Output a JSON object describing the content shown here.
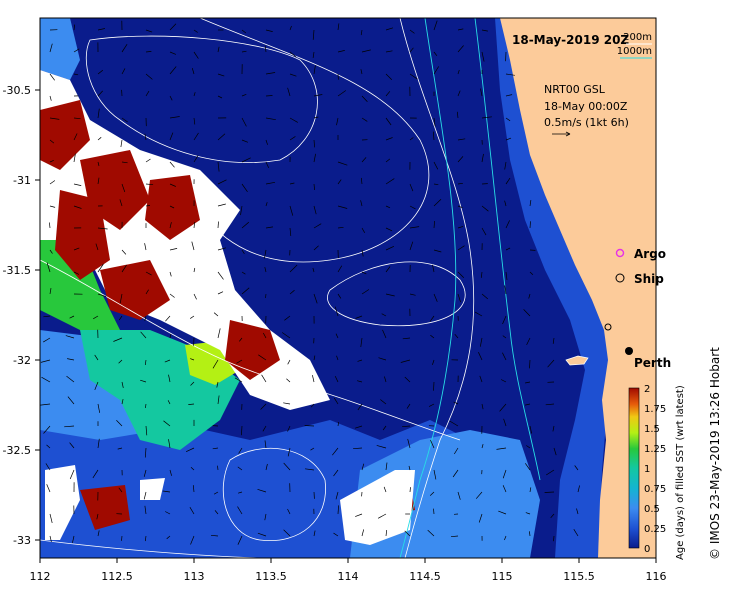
{
  "title": "18-May-2019 20Z",
  "depth_legend": {
    "a": "200m",
    "b": "1000m"
  },
  "current_info": {
    "line1": "NRT00 GSL",
    "line2": "18-May 00:00Z",
    "line3": "0.5m/s (1kt 6h)"
  },
  "markers": {
    "argo": "Argo",
    "ship": "Ship",
    "city": "Perth"
  },
  "colorbar": {
    "label": "Age (days) of filled SST (wrt latest)",
    "ticks": [
      "2",
      "1.75",
      "1.5",
      "1.25",
      "1",
      "0.75",
      "0.5",
      "0.25",
      "0"
    ]
  },
  "axes": {
    "x_ticks": [
      "112",
      "112.5",
      "113",
      "113.5",
      "114",
      "114.5",
      "115",
      "115.5",
      "116"
    ],
    "y_ticks": [
      "-30.5",
      "-31",
      "-31.5",
      "-32",
      "-32.5",
      "-33"
    ]
  },
  "credit": "© IMOS 23-May-2019 13:26 Hobart",
  "colors": {
    "land": "#fccb9a",
    "ocean_deep": "#0a1c8c",
    "ocean_mid": "#1e50d2",
    "ocean_light": "#3c8cf0",
    "cyan": "#14b4d2",
    "teal": "#14c8a0",
    "green": "#28c83c",
    "yellowgreen": "#b4f014",
    "darkred": "#a00a00",
    "cloud": "#ffffff",
    "isobath": "#28dce6"
  }
}
